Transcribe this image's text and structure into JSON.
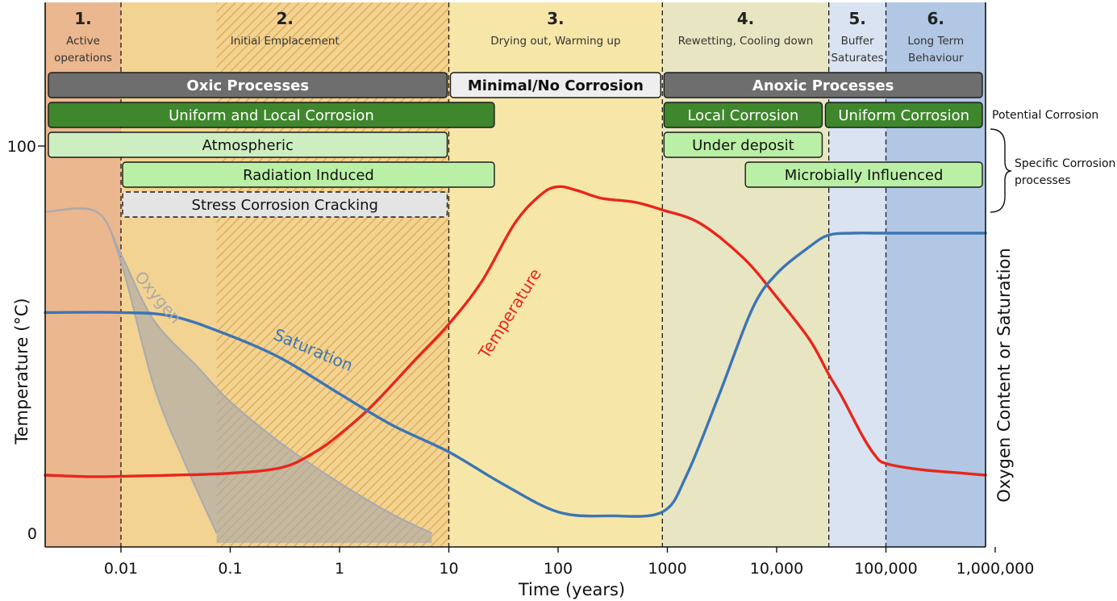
{
  "chart_data": {
    "type": "line",
    "xlabel": "Time (years)",
    "ylabel_left": "Temperature (°C)",
    "ylabel_right": "Oxygen Content or Saturation",
    "x_scale": "log",
    "x_ticks": [
      {
        "value": 0.01,
        "label": "0.01"
      },
      {
        "value": 0.1,
        "label": "0.1"
      },
      {
        "value": 1,
        "label": "1"
      },
      {
        "value": 10,
        "label": "10"
      },
      {
        "value": 100,
        "label": "100"
      },
      {
        "value": 1000,
        "label": "1000"
      },
      {
        "value": 10000,
        "label": "10,000"
      },
      {
        "value": 100000,
        "label": "100,000"
      },
      {
        "value": 1000000,
        "label": "1,000,000"
      }
    ],
    "y_ticks": [
      {
        "value": 0,
        "label": "0"
      },
      {
        "value": 100,
        "label": "100"
      }
    ],
    "xlim": [
      0.002,
      1000000
    ],
    "ylim": [
      -3,
      143
    ],
    "phases": [
      {
        "num": "1.",
        "name_lines": [
          "Active",
          "operations"
        ],
        "x_start": 0.002,
        "x_end": 0.01,
        "color": "#ebb78f"
      },
      {
        "num": "2.",
        "name_lines": [
          "Initial Emplacement"
        ],
        "x_start": 0.01,
        "x_end": 10,
        "color": "#f2d391",
        "hatched_from": 0.075
      },
      {
        "num": "3.",
        "name_lines": [
          "Drying out, Warming up"
        ],
        "x_start": 10,
        "x_end": 900,
        "color": "#f6e7a8"
      },
      {
        "num": "4.",
        "name_lines": [
          "Rewetting, Cooling down"
        ],
        "x_start": 900,
        "x_end": 30000,
        "color": "#e8e5c2"
      },
      {
        "num": "5.",
        "name_lines": [
          "Buffer",
          "Saturates"
        ],
        "x_start": 30000,
        "x_end": 100000,
        "color": "#d9e3f1"
      },
      {
        "num": "6.",
        "name_lines": [
          "Long Term",
          "Behaviour"
        ],
        "x_start": 100000,
        "x_end": 1000000,
        "color": "#b1c7e4"
      }
    ],
    "process_bars": [
      {
        "label": "Oxic Processes",
        "row": 0,
        "x_start": 0.002,
        "x_end": 10,
        "fill": "#6e6e6e",
        "text_color": "#ffffff",
        "bold": true
      },
      {
        "label": "Minimal/No Corrosion",
        "row": 0,
        "x_start": 10,
        "x_end": 900,
        "fill": "#eeeeee",
        "text_color": "#111111",
        "bold": true
      },
      {
        "label": "Anoxic Processes",
        "row": 0,
        "x_start": 900,
        "x_end": 1000000,
        "fill": "#6e6e6e",
        "text_color": "#ffffff",
        "bold": true
      },
      {
        "label": "Uniform and Local Corrosion",
        "row": 1,
        "x_start": 0.002,
        "x_end": 27,
        "fill": "#3f872c",
        "text_color": "#ffffff"
      },
      {
        "label": "Local Corrosion",
        "row": 1,
        "x_start": 900,
        "x_end": 27000,
        "fill": "#3f872c",
        "text_color": "#ffffff"
      },
      {
        "label": "Uniform Corrosion",
        "row": 1,
        "x_start": 27000,
        "x_end": 1000000,
        "fill": "#3f872c",
        "text_color": "#ffffff"
      },
      {
        "label": "Atmospheric",
        "row": 2,
        "x_start": 0.002,
        "x_end": 10,
        "fill": "#cdeec1",
        "text_color": "#111111"
      },
      {
        "label": "Under deposit",
        "row": 2,
        "x_start": 900,
        "x_end": 27000,
        "fill": "#baf0a6",
        "text_color": "#111111"
      },
      {
        "label": "Radiation Induced",
        "row": 3,
        "x_start": 0.01,
        "x_end": 27,
        "fill": "#baf0a6",
        "text_color": "#111111"
      },
      {
        "label": "Microbially Influenced",
        "row": 3,
        "x_start": 5000,
        "x_end": 1000000,
        "fill": "#baf0a6",
        "text_color": "#111111"
      },
      {
        "label": "Stress Corrosion Cracking",
        "row": 4,
        "x_start": 0.01,
        "x_end": 10,
        "fill": "#e4e4e4",
        "text_color": "#111111",
        "dashed": true
      }
    ],
    "side_labels": {
      "potential": "Potential Corrosion",
      "specific": [
        "Specific Corrosion",
        "processes"
      ]
    },
    "series": [
      {
        "name": "Temperature",
        "color": "#e8261c",
        "x": [
          0.002,
          0.005,
          0.01,
          0.03,
          0.1,
          0.3,
          0.6,
          1,
          2,
          5,
          10,
          20,
          40,
          70,
          100,
          150,
          250,
          500,
          900,
          2000,
          5000,
          10000,
          20000,
          30000,
          40000,
          60000,
          80000,
          100000,
          200000,
          500000,
          1000000
        ],
        "y": [
          15,
          14.6,
          14.7,
          15,
          15.5,
          17,
          21,
          25.5,
          33,
          45,
          54,
          65,
          80,
          87.5,
          89.5,
          88.5,
          86.5,
          85.5,
          83.5,
          80,
          71,
          61,
          50,
          41,
          35,
          25.5,
          20,
          18,
          16.5,
          15.5,
          15
        ]
      },
      {
        "name": "Saturation",
        "color": "#3c75b5",
        "x": [
          0.002,
          0.01,
          0.03,
          0.1,
          0.3,
          1,
          3,
          10,
          30,
          100,
          300,
          900,
          1500,
          3000,
          6000,
          10000,
          20000,
          30000,
          50000,
          100000,
          1000000
        ],
        "y": [
          57,
          57,
          56,
          51,
          45,
          36,
          28,
          21,
          13,
          5.5,
          4.5,
          5.5,
          15,
          36,
          58,
          67,
          74,
          77,
          77.5,
          77.5,
          77.5
        ]
      },
      {
        "name": "Oxygen",
        "color": "#a9aaae",
        "upper": {
          "x": [
            0.002,
            0.006,
            0.01,
            0.02,
            0.05,
            0.1,
            0.3,
            1,
            3,
            7
          ],
          "y": [
            83,
            83,
            72,
            55,
            43,
            34,
            23,
            13,
            5,
            0
          ]
        },
        "lower": {
          "x": [
            0.002,
            0.006,
            0.01,
            0.02,
            0.04,
            0.075
          ],
          "y": [
            83,
            83,
            70,
            38,
            17,
            0
          ]
        }
      }
    ]
  }
}
